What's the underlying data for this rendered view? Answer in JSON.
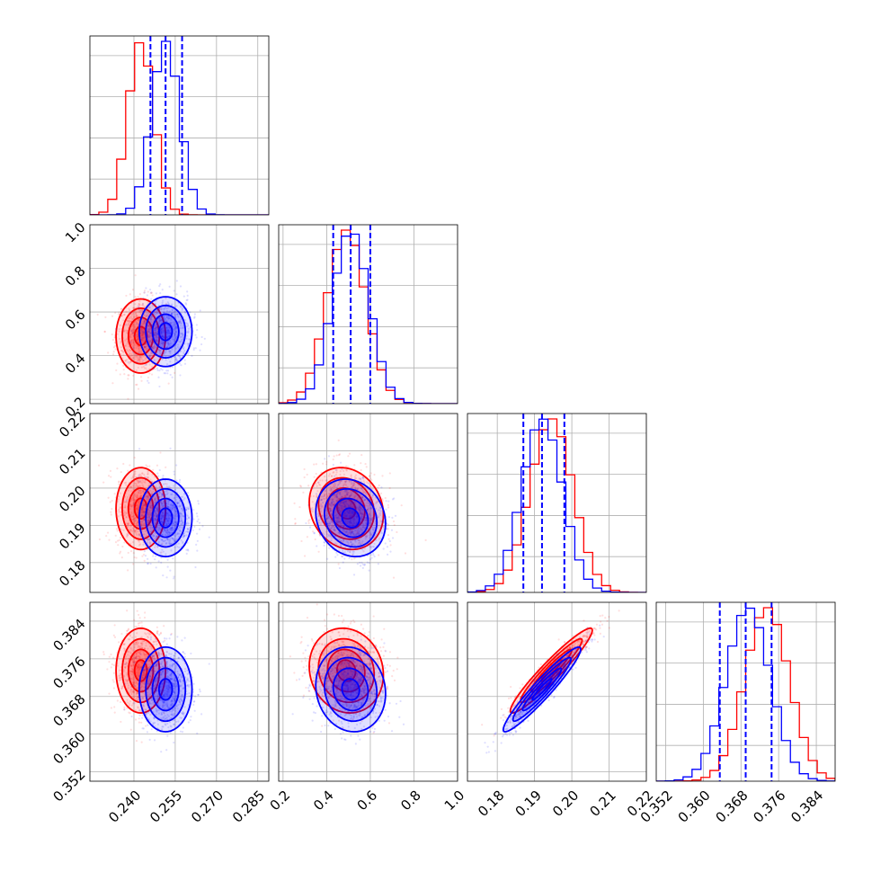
{
  "chart_data": {
    "type": "corner",
    "parameters": [
      "",
      "",
      "",
      ""
    ],
    "ranges": [
      [
        0.224,
        0.289
      ],
      [
        0.18,
        1.0
      ],
      [
        0.172,
        0.22
      ],
      [
        0.35,
        0.388
      ]
    ],
    "ticks": [
      [
        0.24,
        0.255,
        0.27,
        0.285
      ],
      [
        0.2,
        0.4,
        0.6,
        0.8,
        1.0
      ],
      [
        0.18,
        0.19,
        0.2,
        0.21,
        0.22
      ],
      [
        0.352,
        0.36,
        0.368,
        0.376,
        0.384
      ]
    ],
    "tick_labels": [
      [
        "0.240",
        "0.255",
        "0.270",
        "0.285"
      ],
      [
        "0.2",
        "0.4",
        "0.6",
        "0.8",
        "1.0"
      ],
      [
        "0.18",
        "0.19",
        "0.20",
        "0.21",
        "0.22"
      ],
      [
        "0.352",
        "0.360",
        "0.368",
        "0.376",
        "0.384"
      ]
    ],
    "grid": true,
    "quantile_line_color": "#0000ff",
    "series": [
      {
        "color": "#ff0000",
        "means": [
          0.2425,
          0.49,
          0.1945,
          0.3735
        ],
        "stds": [
          0.0045,
          0.085,
          0.0055,
          0.0045
        ],
        "corr": [
          [
            1,
            0,
            0,
            0
          ],
          [
            0,
            1,
            -0.15,
            -0.1
          ],
          [
            0,
            -0.15,
            1,
            0.95
          ],
          [
            0,
            -0.1,
            0.95,
            1
          ]
        ]
      },
      {
        "color": "#0000ff",
        "means": [
          0.2515,
          0.51,
          0.192,
          0.3695
        ],
        "stds": [
          0.0048,
          0.08,
          0.0052,
          0.0045
        ],
        "corr": [
          [
            1,
            0,
            0,
            0
          ],
          [
            0,
            1,
            -0.15,
            -0.1
          ],
          [
            0,
            -0.15,
            1,
            0.95
          ],
          [
            0,
            -0.1,
            0.95,
            1
          ]
        ]
      }
    ],
    "quantiles": [
      [
        0.246,
        0.2515,
        0.2575
      ],
      [
        0.43,
        0.51,
        0.6
      ],
      [
        0.187,
        0.192,
        0.198
      ],
      [
        0.3635,
        0.369,
        0.3745
      ]
    ]
  }
}
